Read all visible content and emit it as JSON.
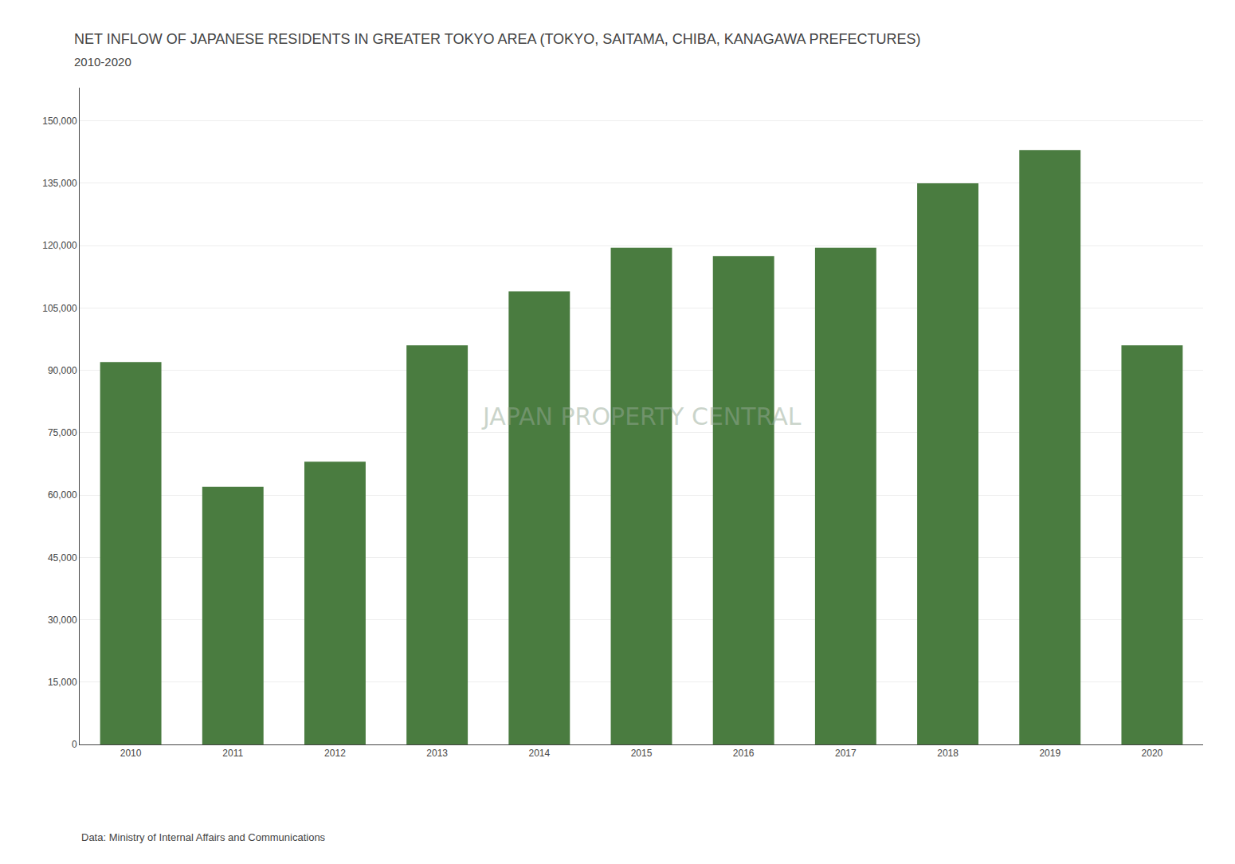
{
  "chart_data": {
    "type": "bar",
    "title": "NET INFLOW OF JAPANESE RESIDENTS IN GREATER TOKYO AREA (TOKYO, SAITAMA, CHIBA, KANAGAWA PREFECTURES)",
    "subtitle": "2010-2020",
    "annotations": [
      "JAPAN PROPERTY CENTRAL",
      "Data: Ministry of Internal Affairs and Communications"
    ],
    "x": [
      2010,
      2011,
      2012,
      2013,
      2014,
      2015,
      2016,
      2017,
      2018,
      2019,
      2020
    ],
    "values": [
      92000,
      62000,
      68000,
      96000,
      109000,
      119500,
      117500,
      119500,
      135000,
      143000,
      96000
    ],
    "color": "#4a7c40",
    "xlim": [
      2009.5,
      2020.5
    ],
    "xticks": [
      2010,
      2011,
      2012,
      2013,
      2014,
      2015,
      2016,
      2017,
      2018,
      2019,
      2020
    ],
    "ylim": [
      0,
      158000
    ],
    "yticks": [
      0,
      {
        "value": 15000,
        "label": "15,000"
      },
      {
        "value": 30000,
        "label": "30,000"
      },
      {
        "value": 45000,
        "label": "45,000"
      },
      {
        "value": 60000,
        "label": "60,000"
      },
      {
        "value": 75000,
        "label": "75,000"
      },
      {
        "value": 90000,
        "label": "90,000"
      },
      {
        "value": 105000,
        "label": "105,000"
      },
      {
        "value": 120000,
        "label": "120,000"
      },
      {
        "value": 135000,
        "label": "135,000"
      },
      {
        "value": 150000,
        "label": "150,000"
      }
    ],
    "grid": true
  }
}
